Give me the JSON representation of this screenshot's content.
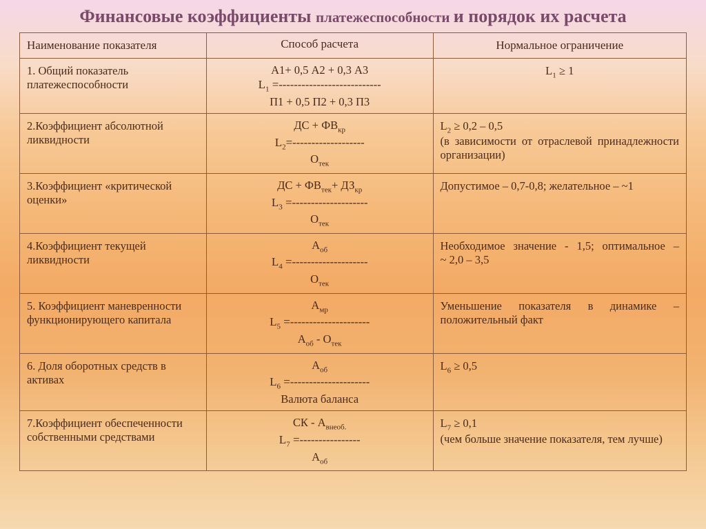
{
  "title_part1": "Финансовые коэффициенты ",
  "title_part2": "платежеспособности ",
  "title_part3": "и порядок их расчета",
  "headers": {
    "name": "Наименование показателя",
    "calc": "Способ расчета",
    "norm": "Нормальное ограничение"
  },
  "rows": [
    {
      "name": "1. Общий показатель платежеспособности",
      "formula_label": "L₁ = ",
      "numerator": "А1+ 0,5 А2 + 0,3 А3",
      "dashes": "---------------------------",
      "denominator": "П1 + 0,5 П2 + 0,3 П3",
      "norm": "L₁ ≥ 1",
      "norm_center": true
    },
    {
      "name": "2.Коэффициент абсолютной ликвидности",
      "formula_label": "L₂=",
      "numerator_html": "ДС + ФВ<sub>кр</sub>",
      "dashes": "-------------------",
      "denominator_html": "О<sub>тек</sub>",
      "norm_html": "L₂ ≥ 0,2 – 0,5<br>(в зависимости от отраслевой принадлежности организации)",
      "norm_justify": true
    },
    {
      "name": "3.Коэффициент «критической оценки»",
      "formula_label": "L₃ = ",
      "numerator_html": "ДС + ФВ<sub>тек</sub>+ ДЗ<sub>кр</sub>",
      "dashes": "--------------------",
      "denominator_html": "О<sub>тек</sub>",
      "norm": "Допустимое – 0,7-0,8; желательное – ~1"
    },
    {
      "name": "4.Коэффициент текущей ликвидности",
      "formula_label": "L₄ =",
      "numerator_html": "А<sub>об</sub>",
      "dashes": "--------------------",
      "denominator_html": "О<sub>тек</sub>",
      "norm_html": "Необходимое значение - 1,5; оптимальное –<br>~ 2,0 – 3,5",
      "norm_justify": true
    },
    {
      "name": "5. Коэффициент маневренности функционирующего капитала",
      "formula_label": "L₅ =",
      "numerator_html": "А<sub>мр</sub>",
      "dashes": "---------------------",
      "denominator_html": "А<sub>об</sub> - О<sub>тек</sub>",
      "norm": "Уменьшение показателя в динамике – положительный факт",
      "norm_justify": true
    },
    {
      "name": "6. Доля оборотных средств в активах",
      "formula_label": "L₆ = ",
      "numerator_html": "А<sub>об</sub>",
      "dashes": "---------------------",
      "denominator": "Валюта баланса",
      "norm": " L₆ ≥ 0,5",
      "norm_center": false
    },
    {
      "name": "7.Коэффициент обеспеченности собственными средствами",
      "formula_label": "L₇ = ",
      "numerator_html": "СК - А<sub>внеоб.</sub>",
      "dashes": "----------------",
      "denominator_html": "А<sub>об</sub>",
      "norm_html": " L₇ ≥ 0,1<br>(чем больше значение показателя, тем лучше)",
      "norm_justify": true
    }
  ],
  "colors": {
    "title": "#7a4a6a",
    "border": "#8a5a3a",
    "text": "#4a2a1a"
  }
}
